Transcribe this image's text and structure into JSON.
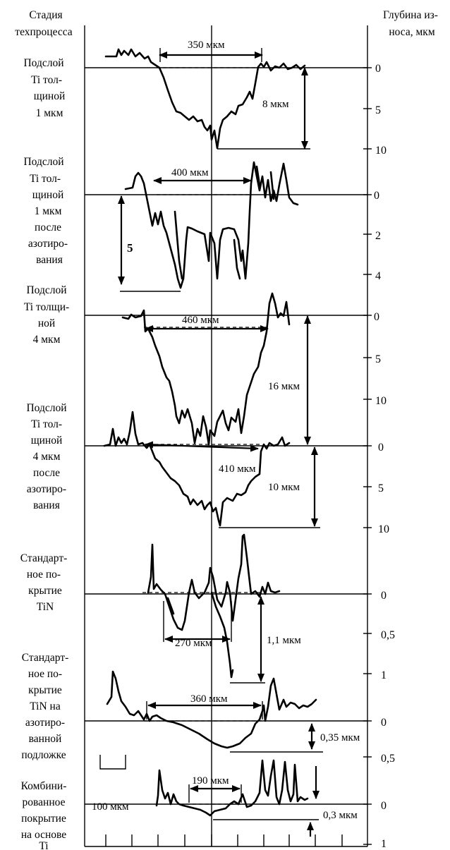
{
  "header": {
    "left_title_line1": "Стадия",
    "left_title_line2": "техпроцесса",
    "right_title_line1": "Глубина из-",
    "right_title_line2": "носа, мкм"
  },
  "stages": [
    {
      "label_lines": [
        "Подслой",
        "Ti тол-",
        "щиной",
        "1 мкм"
      ],
      "width_label": "350 мкм",
      "depth_label": "8 мкм",
      "depth_ticks": [
        "0",
        "5",
        "10"
      ]
    },
    {
      "label_lines": [
        "Подслой",
        "Ti тол-",
        "щиной",
        "1 мкм",
        "после",
        "азотиро-",
        "вания"
      ],
      "width_label": "400 мкм",
      "depth_label": "5",
      "depth_ticks": [
        "0",
        "2",
        "4"
      ]
    },
    {
      "label_lines": [
        "Подслой",
        "Ti толщи-",
        "ной",
        "4 мкм"
      ],
      "width_label": "460 мкм",
      "depth_label": "16 мкм",
      "depth_ticks": [
        "0",
        "5",
        "10"
      ]
    },
    {
      "label_lines": [
        "Подслой",
        "Ti тол-",
        "щиной",
        "4 мкм",
        "после",
        "азотиро-",
        "вания"
      ],
      "width_label": "410 мкм",
      "depth_label": "10 мкм",
      "depth_ticks": [
        "0",
        "5",
        "10"
      ]
    },
    {
      "label_lines": [
        "Стандарт-",
        "ное по-",
        "крытие",
        "TiN"
      ],
      "width_label": "270 мкм",
      "depth_label": "1,1 мкм",
      "depth_ticks": [
        "0",
        "0,5",
        "1"
      ]
    },
    {
      "label_lines": [
        "Стандарт-",
        "ное по-",
        "крытие",
        "TiN на",
        "азотиро-",
        "ванной",
        "подложке"
      ],
      "width_label": "360 мкм",
      "depth_label": "0,35 мкм",
      "depth_ticks": [
        "0",
        "0,5"
      ]
    },
    {
      "label_lines": [
        "Комбини-",
        "рованное",
        "покрытие",
        "на основе",
        "Ti"
      ],
      "width_label": "190 мкм",
      "depth_label": "0,3 мкм",
      "depth_ticks": [
        "0",
        "1"
      ]
    }
  ],
  "scale_bar_label": "100 мкм"
}
